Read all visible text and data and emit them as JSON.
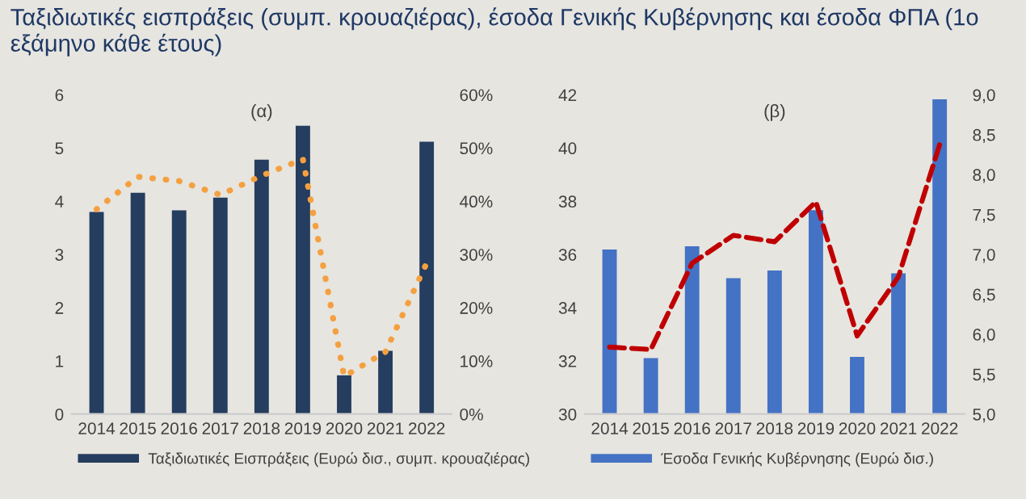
{
  "chart_data": [
    {
      "type": "bar",
      "title": "Ταξιδιωτικές εισπράξεις (συμπ. κρουαζιέρας), έσοδα Γενικής Κυβέρνησης και έσοδα ΦΠΑ (1ο εξάμηνο κάθε έτους)",
      "subtitle": "(α)",
      "categories": [
        "2014",
        "2015",
        "2016",
        "2017",
        "2018",
        "2019",
        "2020",
        "2021",
        "2022"
      ],
      "series": [
        {
          "name": "Ταξιδιωτικές Εισπράξεις (Ευρώ δισ., συμπ. κρουαζιέρας)",
          "color": "#253d5e",
          "values": [
            3.8,
            4.16,
            3.83,
            4.07,
            4.78,
            5.42,
            0.73,
            1.19,
            5.12
          ]
        },
        {
          "type": "line",
          "axis": "y2",
          "color": "#f5a040",
          "line_style": "dotted",
          "values": [
            38.5,
            44.6,
            43.8,
            41.2,
            44.8,
            47.9,
            7.1,
            11.7,
            28.4
          ]
        }
      ],
      "ylim": [
        0,
        6
      ],
      "yticks": [
        0,
        1,
        2,
        3,
        4,
        5,
        6
      ],
      "y2lim": [
        0,
        60
      ],
      "y2ticks": [
        {
          "value": 0,
          "label": "0%"
        },
        {
          "value": 10,
          "label": "10%"
        },
        {
          "value": 20,
          "label": "20%"
        },
        {
          "value": 30,
          "label": "30%"
        },
        {
          "value": 40,
          "label": "40%"
        },
        {
          "value": 50,
          "label": "50%"
        },
        {
          "value": 60,
          "label": "60%"
        }
      ],
      "legend": "bottom",
      "grid": false
    },
    {
      "type": "bar",
      "subtitle": "(β)",
      "categories": [
        "2014",
        "2015",
        "2016",
        "2017",
        "2018",
        "2019",
        "2020",
        "2021",
        "2022"
      ],
      "series": [
        {
          "name": "Έσοδα Γενικής Κυβέρνησης (Ευρώ δισ.)",
          "color": "#4472c4",
          "values": [
            36.19,
            32.11,
            36.31,
            35.11,
            35.4,
            37.67,
            32.15,
            35.29,
            41.83
          ]
        },
        {
          "type": "line",
          "axis": "y2",
          "color": "#c00000",
          "line_style": "dashed",
          "values": [
            5.84,
            5.81,
            6.89,
            7.24,
            7.16,
            7.66,
            5.98,
            6.72,
            8.38
          ]
        }
      ],
      "ylim": [
        30,
        42
      ],
      "yticks": [
        30,
        32,
        34,
        36,
        38,
        40,
        42
      ],
      "y2lim": [
        5.0,
        9.0
      ],
      "y2ticks": [
        {
          "value": 5.0,
          "label": "5,0"
        },
        {
          "value": 5.5,
          "label": "5,5"
        },
        {
          "value": 6.0,
          "label": "6,0"
        },
        {
          "value": 6.5,
          "label": "6,5"
        },
        {
          "value": 7.0,
          "label": "7,0"
        },
        {
          "value": 7.5,
          "label": "7,5"
        },
        {
          "value": 8.0,
          "label": "8,0"
        },
        {
          "value": 8.5,
          "label": "8,5"
        },
        {
          "value": 9.0,
          "label": "9,0"
        }
      ],
      "legend": "bottom",
      "grid": false
    }
  ]
}
